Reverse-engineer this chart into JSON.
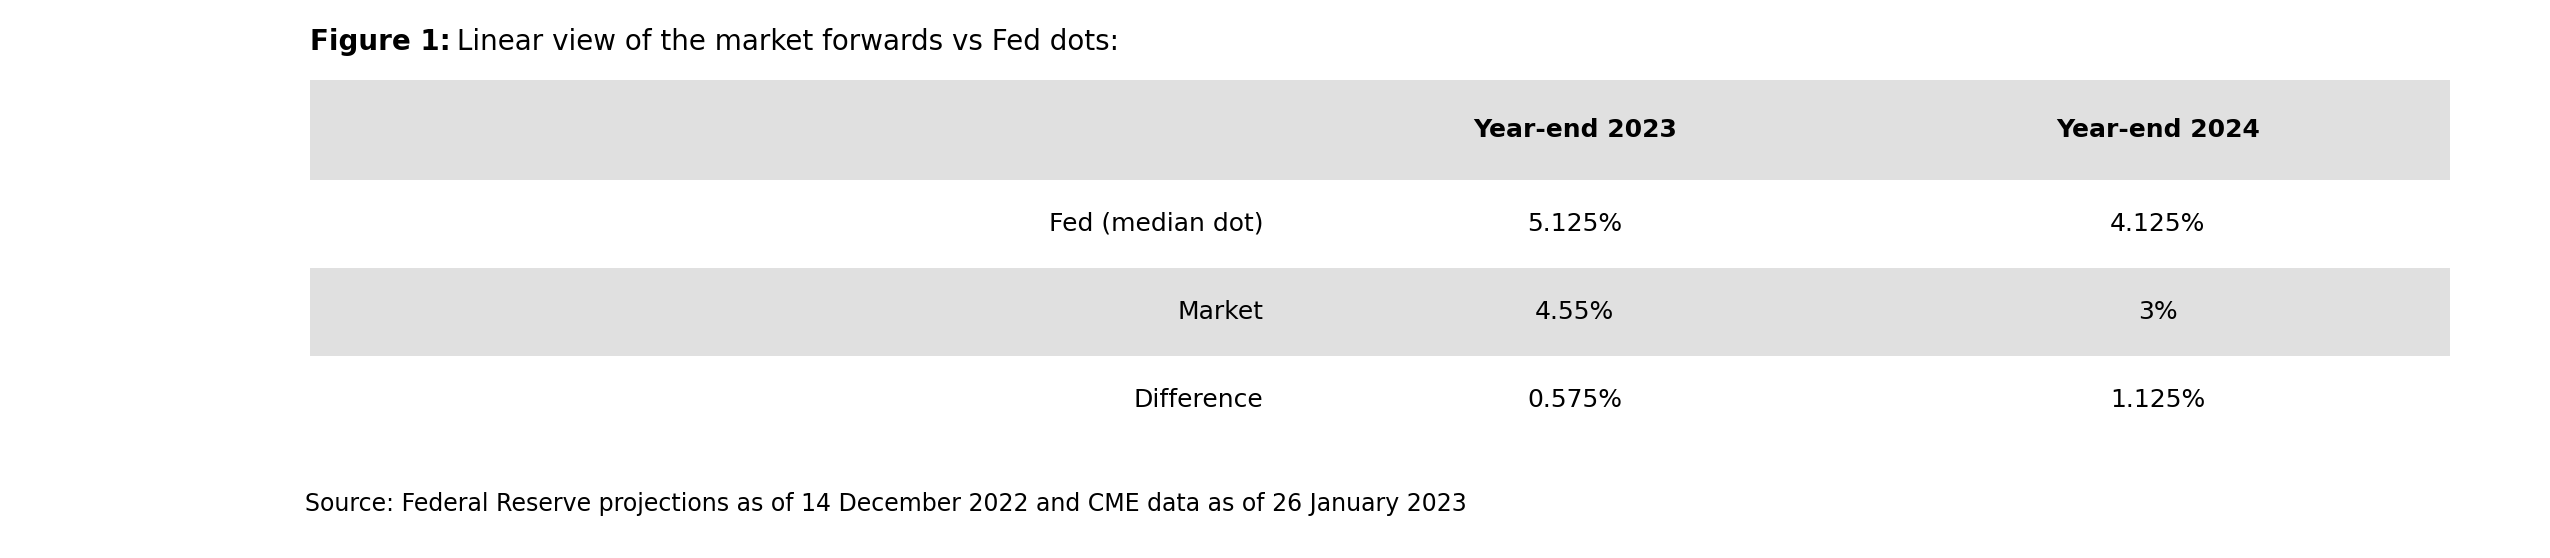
{
  "title_bold": "Figure 1:",
  "title_regular": " Linear view of the market forwards vs Fed dots:",
  "source_text": "Source: Federal Reserve projections as of 14 December 2022 and CME data as of 26 January 2023",
  "col_headers": [
    "",
    "Year-end 2023",
    "Year-end 2024"
  ],
  "rows": [
    [
      "Fed (median dot)",
      "5.125%",
      "4.125%"
    ],
    [
      "Market",
      "4.55%",
      "3%"
    ],
    [
      "Difference",
      "0.575%",
      "1.125%"
    ]
  ],
  "bg_color": "#e0e0e0",
  "white_color": "#ffffff",
  "text_color": "#000000",
  "figure_bg": "#ffffff",
  "title_fontsize": 20,
  "header_fontsize": 18,
  "cell_fontsize": 18,
  "source_fontsize": 17
}
